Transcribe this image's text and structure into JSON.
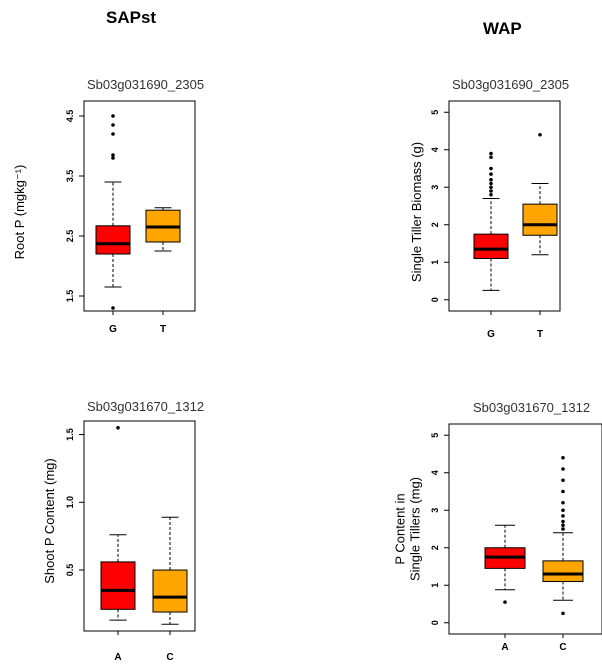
{
  "headings": {
    "left": "SAPst",
    "right": "WAP"
  },
  "colors": {
    "first": "#ff0000",
    "second": "#ffa500",
    "outline": "#000000"
  },
  "chart_data": [
    {
      "type": "boxplot",
      "title": "Sb03g031690_2305",
      "ylabel": [
        "Root P (mgkg⁻¹)"
      ],
      "ylim": [
        1.25,
        4.75
      ],
      "yticks": [
        1.5,
        2.5,
        3.5,
        4.5
      ],
      "ytick_labels": [
        "1.5",
        "2.5",
        "3.5",
        "4.5"
      ],
      "categories": [
        "G",
        "T"
      ],
      "boxes": [
        {
          "category": "G",
          "whisker_low": 1.65,
          "q1": 2.2,
          "median": 2.37,
          "q3": 2.67,
          "whisker_high": 3.4,
          "outliers": [
            1.3,
            3.8,
            3.85,
            4.2,
            4.35,
            4.5
          ]
        },
        {
          "category": "T",
          "whisker_low": 2.25,
          "q1": 2.4,
          "median": 2.65,
          "q3": 2.93,
          "whisker_high": 2.97,
          "outliers": []
        }
      ]
    },
    {
      "type": "boxplot",
      "title": "Sb03g031690_2305",
      "ylabel": [
        "Single Tiller Biomass (g)"
      ],
      "ylim": [
        -0.3,
        5.3
      ],
      "yticks": [
        0,
        1,
        2,
        3,
        4,
        5
      ],
      "ytick_labels": [
        "0",
        "1",
        "2",
        "3",
        "4",
        "5"
      ],
      "categories": [
        "G",
        "T"
      ],
      "boxes": [
        {
          "category": "G",
          "whisker_low": 0.25,
          "q1": 1.1,
          "median": 1.35,
          "q3": 1.75,
          "whisker_high": 2.7,
          "outliers": [
            2.8,
            2.9,
            3.0,
            3.1,
            3.2,
            3.35,
            3.5,
            3.8,
            3.9
          ]
        },
        {
          "category": "T",
          "whisker_low": 1.2,
          "q1": 1.72,
          "median": 2.0,
          "q3": 2.55,
          "whisker_high": 3.1,
          "outliers": [
            4.4
          ]
        }
      ]
    },
    {
      "type": "boxplot",
      "title": "Sb03g031670_1312",
      "ylabel": [
        "Shoot P Content (mg)"
      ],
      "ylim": [
        0.05,
        1.6
      ],
      "yticks": [
        0.5,
        1.0,
        1.5
      ],
      "ytick_labels": [
        "0.5",
        "1.0",
        "1.5"
      ],
      "categories": [
        "A",
        "C"
      ],
      "boxes": [
        {
          "category": "A",
          "whisker_low": 0.13,
          "q1": 0.21,
          "median": 0.35,
          "q3": 0.56,
          "whisker_high": 0.76,
          "outliers": [
            1.55
          ]
        },
        {
          "category": "C",
          "whisker_low": 0.1,
          "q1": 0.19,
          "median": 0.3,
          "q3": 0.5,
          "whisker_high": 0.89,
          "outliers": []
        }
      ]
    },
    {
      "type": "boxplot",
      "title": "Sb03g031670_1312",
      "ylabel": [
        "P Content in",
        "Single Tillers (mg)"
      ],
      "ylim": [
        -0.3,
        5.3
      ],
      "yticks": [
        0,
        1,
        2,
        3,
        4,
        5
      ],
      "ytick_labels": [
        "0",
        "1",
        "2",
        "3",
        "4",
        "5"
      ],
      "categories": [
        "A",
        "C"
      ],
      "boxes": [
        {
          "category": "A",
          "whisker_low": 0.88,
          "q1": 1.45,
          "median": 1.75,
          "q3": 2.0,
          "whisker_high": 2.6,
          "outliers": [
            0.55
          ]
        },
        {
          "category": "C",
          "whisker_low": 0.6,
          "q1": 1.1,
          "median": 1.3,
          "q3": 1.65,
          "whisker_high": 2.4,
          "outliers": [
            0.25,
            2.5,
            2.6,
            2.7,
            2.85,
            3.0,
            3.2,
            3.5,
            3.8,
            4.1,
            4.4
          ]
        }
      ]
    }
  ]
}
